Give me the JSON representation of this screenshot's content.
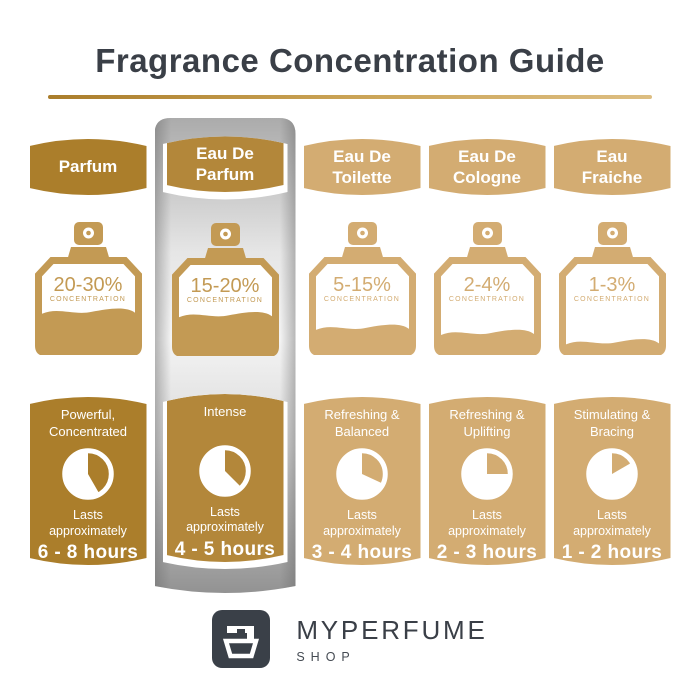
{
  "title": "Fragrance Concentration Guide",
  "columns": [
    {
      "name": "Parfum",
      "concentration": "20-30%",
      "concentration_label": "CONCENTRATION",
      "fill_percent": 45,
      "description": "Powerful,\nConcentrated",
      "lasts": "Lasts\napproximately",
      "duration": "6 - 8 hours",
      "clock_degrees": 150,
      "highlighted": false,
      "theme": {
        "badge": "#ab7e2b",
        "bottle": "#c39a54",
        "card": "#ab7e2b"
      }
    },
    {
      "name": "Eau De\nParfum",
      "concentration": "15-20%",
      "concentration_label": "CONCENTRATION",
      "fill_percent": 42,
      "description": "Intense",
      "lasts": "Lasts\napproximately",
      "duration": "4 - 5 hours",
      "clock_degrees": 135,
      "highlighted": true,
      "theme": {
        "badge": "#b3873a",
        "bottle": "#c39a54",
        "card": "#b3873a"
      }
    },
    {
      "name": "Eau De\nToilette",
      "concentration": "5-15%",
      "concentration_label": "CONCENTRATION",
      "fill_percent": 26,
      "description": "Refreshing &\nBalanced",
      "lasts": "Lasts\napproximately",
      "duration": "3 - 4 hours",
      "clock_degrees": 115,
      "highlighted": false,
      "theme": {
        "badge": "#d3ac72",
        "bottle": "#d3ac72",
        "card": "#d3ac72"
      }
    },
    {
      "name": "Eau De\nCologne",
      "concentration": "2-4%",
      "concentration_label": "CONCENTRATION",
      "fill_percent": 20,
      "description": "Refreshing &\nUplifting",
      "lasts": "Lasts\napproximately",
      "duration": "2 - 3 hours",
      "clock_degrees": 90,
      "highlighted": false,
      "theme": {
        "badge": "#d3ac72",
        "bottle": "#d3ac72",
        "card": "#d3ac72"
      }
    },
    {
      "name": "Eau\nFraiche",
      "concentration": "1-3%",
      "concentration_label": "CONCENTRATION",
      "fill_percent": 9,
      "description": "Stimulating &\nBracing",
      "lasts": "Lasts\napproximately",
      "duration": "1 - 2 hours",
      "clock_degrees": 60,
      "highlighted": false,
      "theme": {
        "badge": "#d3ac72",
        "bottle": "#d3ac72",
        "card": "#d3ac72"
      }
    }
  ],
  "brand": {
    "name": "MYPERFUME",
    "sub": "SHOP"
  },
  "colors": {
    "title_text": "#3a3f47",
    "underline_left": "#aa7d2b",
    "underline_right": "#ddbe82",
    "silver_dark": "#8f8f8f",
    "logo_bg": "#3a4048"
  }
}
